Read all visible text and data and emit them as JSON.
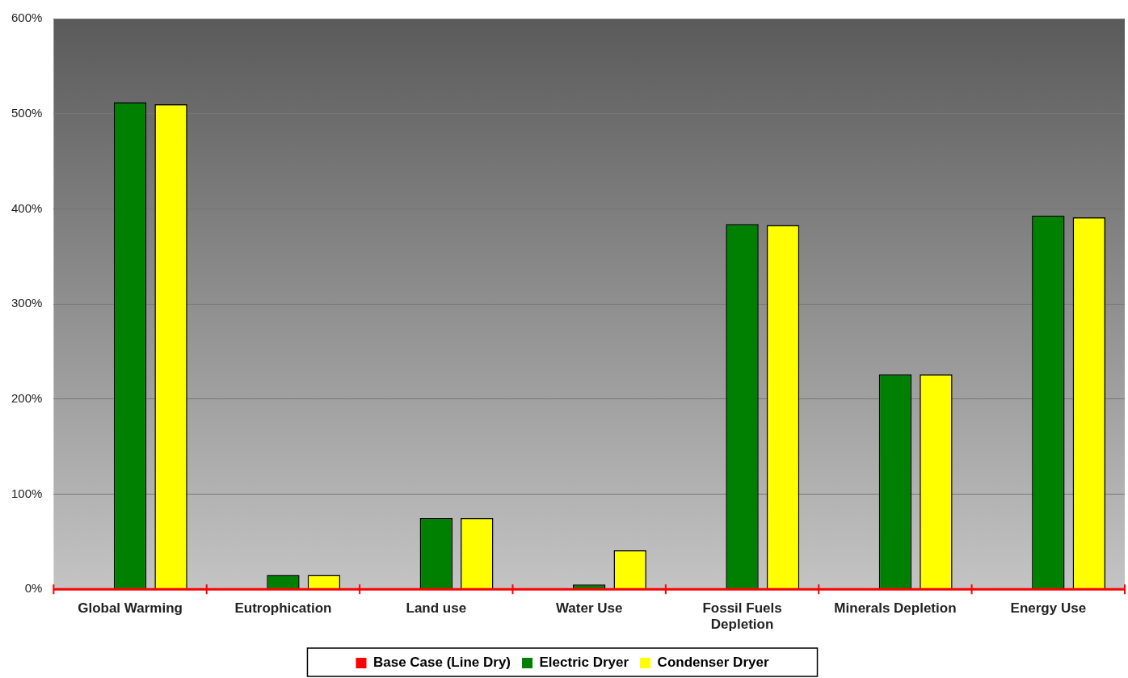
{
  "chart_data": {
    "type": "bar",
    "categories": [
      "Global Warming",
      "Eutrophication",
      "Land use",
      "Water Use",
      "Fossil Fuels Depletion",
      "Minerals Depletion",
      "Energy Use"
    ],
    "series": [
      {
        "name": "Base Case (Line Dry)",
        "color": "#ff0000",
        "values": [
          0,
          0,
          0,
          0,
          0,
          0,
          0
        ]
      },
      {
        "name": "Electric Dryer",
        "color": "#008000",
        "values": [
          512,
          15,
          75,
          5,
          384,
          226,
          393
        ]
      },
      {
        "name": "Condenser Dryer",
        "color": "#ffff00",
        "values": [
          510,
          15,
          75,
          41,
          383,
          226,
          391
        ]
      }
    ],
    "ylim": [
      0,
      600
    ],
    "yticks": [
      {
        "value": 0,
        "label": "0%"
      },
      {
        "value": 100,
        "label": "100%"
      },
      {
        "value": 200,
        "label": "200%"
      },
      {
        "value": 300,
        "label": "300%"
      },
      {
        "value": 400,
        "label": "400%"
      },
      {
        "value": 500,
        "label": "500%"
      },
      {
        "value": 600,
        "label": "600%"
      }
    ],
    "grid": "y",
    "legend": "bottom"
  }
}
